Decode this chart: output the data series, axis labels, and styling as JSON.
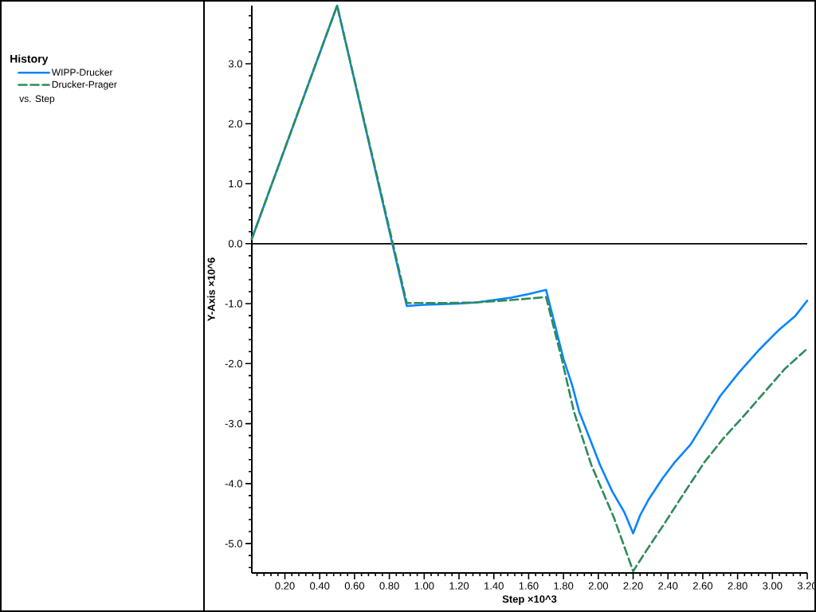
{
  "chart_data": {
    "type": "line",
    "xlabel": "Step ×10^3",
    "ylabel": "Y-Axis ×10^6",
    "legend_title": "History",
    "annotations": [
      "vs. Step"
    ],
    "legend": "left",
    "xlim": [
      0.01,
      3.2
    ],
    "ylim": [
      -5.49,
      3.97
    ],
    "xticks": [
      {
        "value": 0.04,
        "label": null
      },
      {
        "value": 0.08,
        "label": null
      },
      {
        "value": 0.12,
        "label": null
      },
      {
        "value": 0.16,
        "label": null
      },
      {
        "value": 0.2,
        "label": "0.20"
      },
      {
        "value": 0.24,
        "label": null
      },
      {
        "value": 0.28,
        "label": null
      },
      {
        "value": 0.32,
        "label": null
      },
      {
        "value": 0.36,
        "label": null
      },
      {
        "value": 0.4,
        "label": "0.40"
      },
      {
        "value": 0.44,
        "label": null
      },
      {
        "value": 0.48,
        "label": null
      },
      {
        "value": 0.52,
        "label": null
      },
      {
        "value": 0.56,
        "label": null
      },
      {
        "value": 0.6,
        "label": "0.60"
      },
      {
        "value": 0.64,
        "label": null
      },
      {
        "value": 0.68,
        "label": null
      },
      {
        "value": 0.72,
        "label": null
      },
      {
        "value": 0.76,
        "label": null
      },
      {
        "value": 0.8,
        "label": "0.80"
      },
      {
        "value": 0.84,
        "label": null
      },
      {
        "value": 0.88,
        "label": null
      },
      {
        "value": 0.92,
        "label": null
      },
      {
        "value": 0.96,
        "label": null
      },
      {
        "value": 1.0,
        "label": "1.00"
      },
      {
        "value": 1.04,
        "label": null
      },
      {
        "value": 1.08,
        "label": null
      },
      {
        "value": 1.12,
        "label": null
      },
      {
        "value": 1.16,
        "label": null
      },
      {
        "value": 1.2,
        "label": "1.20"
      },
      {
        "value": 1.24,
        "label": null
      },
      {
        "value": 1.28,
        "label": null
      },
      {
        "value": 1.32,
        "label": null
      },
      {
        "value": 1.36,
        "label": null
      },
      {
        "value": 1.4,
        "label": "1.40"
      },
      {
        "value": 1.44,
        "label": null
      },
      {
        "value": 1.48,
        "label": null
      },
      {
        "value": 1.52,
        "label": null
      },
      {
        "value": 1.56,
        "label": null
      },
      {
        "value": 1.6,
        "label": "1.60"
      },
      {
        "value": 1.64,
        "label": null
      },
      {
        "value": 1.68,
        "label": null
      },
      {
        "value": 1.72,
        "label": null
      },
      {
        "value": 1.76,
        "label": null
      },
      {
        "value": 1.8,
        "label": "1.80"
      },
      {
        "value": 1.84,
        "label": null
      },
      {
        "value": 1.88,
        "label": null
      },
      {
        "value": 1.92,
        "label": null
      },
      {
        "value": 1.96,
        "label": null
      },
      {
        "value": 2.0,
        "label": "2.00"
      },
      {
        "value": 2.04,
        "label": null
      },
      {
        "value": 2.08,
        "label": null
      },
      {
        "value": 2.12,
        "label": null
      },
      {
        "value": 2.16,
        "label": null
      },
      {
        "value": 2.2,
        "label": "2.20"
      },
      {
        "value": 2.24,
        "label": null
      },
      {
        "value": 2.28,
        "label": null
      },
      {
        "value": 2.32,
        "label": null
      },
      {
        "value": 2.36,
        "label": null
      },
      {
        "value": 2.4,
        "label": "2.40"
      },
      {
        "value": 2.44,
        "label": null
      },
      {
        "value": 2.48,
        "label": null
      },
      {
        "value": 2.52,
        "label": null
      },
      {
        "value": 2.56,
        "label": null
      },
      {
        "value": 2.6,
        "label": "2.60"
      },
      {
        "value": 2.64,
        "label": null
      },
      {
        "value": 2.68,
        "label": null
      },
      {
        "value": 2.72,
        "label": null
      },
      {
        "value": 2.76,
        "label": null
      },
      {
        "value": 2.8,
        "label": "2.80"
      },
      {
        "value": 2.84,
        "label": null
      },
      {
        "value": 2.88,
        "label": null
      },
      {
        "value": 2.92,
        "label": null
      },
      {
        "value": 2.96,
        "label": null
      },
      {
        "value": 3.0,
        "label": "3.00"
      },
      {
        "value": 3.04,
        "label": null
      },
      {
        "value": 3.08,
        "label": null
      },
      {
        "value": 3.12,
        "label": null
      },
      {
        "value": 3.16,
        "label": null
      },
      {
        "value": 3.2,
        "label": "3.20"
      }
    ],
    "yticks": [
      {
        "value": -5.4,
        "label": null
      },
      {
        "value": -5.2,
        "label": null
      },
      {
        "value": -5.0,
        "label": "-5.0"
      },
      {
        "value": -4.8,
        "label": null
      },
      {
        "value": -4.6,
        "label": null
      },
      {
        "value": -4.4,
        "label": null
      },
      {
        "value": -4.2,
        "label": null
      },
      {
        "value": -4.0,
        "label": "-4.0"
      },
      {
        "value": -3.8,
        "label": null
      },
      {
        "value": -3.6,
        "label": null
      },
      {
        "value": -3.4,
        "label": null
      },
      {
        "value": -3.2,
        "label": null
      },
      {
        "value": -3.0,
        "label": "-3.0"
      },
      {
        "value": -2.8,
        "label": null
      },
      {
        "value": -2.6,
        "label": null
      },
      {
        "value": -2.4,
        "label": null
      },
      {
        "value": -2.2,
        "label": null
      },
      {
        "value": -2.0,
        "label": "-2.0"
      },
      {
        "value": -1.8,
        "label": null
      },
      {
        "value": -1.6,
        "label": null
      },
      {
        "value": -1.4,
        "label": null
      },
      {
        "value": -1.2,
        "label": null
      },
      {
        "value": -1.0,
        "label": "-1.0"
      },
      {
        "value": -0.8,
        "label": null
      },
      {
        "value": -0.6,
        "label": null
      },
      {
        "value": -0.4,
        "label": null
      },
      {
        "value": -0.2,
        "label": null
      },
      {
        "value": 0.0,
        "label": "0.0"
      },
      {
        "value": 0.2,
        "label": null
      },
      {
        "value": 0.4,
        "label": null
      },
      {
        "value": 0.6,
        "label": null
      },
      {
        "value": 0.8,
        "label": null
      },
      {
        "value": 1.0,
        "label": "1.0"
      },
      {
        "value": 1.2,
        "label": null
      },
      {
        "value": 1.4,
        "label": null
      },
      {
        "value": 1.6,
        "label": null
      },
      {
        "value": 1.8,
        "label": null
      },
      {
        "value": 2.0,
        "label": "2.0"
      },
      {
        "value": 2.2,
        "label": null
      },
      {
        "value": 2.4,
        "label": null
      },
      {
        "value": 2.6,
        "label": null
      },
      {
        "value": 2.8,
        "label": null
      },
      {
        "value": 3.0,
        "label": "3.0"
      },
      {
        "value": 3.2,
        "label": null
      },
      {
        "value": 3.4,
        "label": null
      },
      {
        "value": 3.6,
        "label": null
      },
      {
        "value": 3.8,
        "label": null
      }
    ],
    "ref_lines": [
      {
        "axis": "y",
        "value": 0,
        "color": "#000000"
      }
    ],
    "series": [
      {
        "name": "WIPP-Drucker",
        "color": "#0a84ff",
        "line_style": "solid",
        "x": [
          0.01,
          0.5,
          0.9,
          1.0,
          1.2,
          1.3,
          1.4,
          1.5,
          1.6,
          1.7,
          1.8,
          1.85,
          1.89,
          1.95,
          2.01,
          2.08,
          2.15,
          2.2,
          2.24,
          2.29,
          2.37,
          2.44,
          2.53,
          2.6,
          2.7,
          2.81,
          2.92,
          3.04,
          3.13,
          3.2
        ],
        "values": [
          0.08,
          3.97,
          -1.04,
          -1.02,
          -1.0,
          -0.98,
          -0.94,
          -0.9,
          -0.84,
          -0.77,
          -1.92,
          -2.36,
          -2.8,
          -3.24,
          -3.69,
          -4.13,
          -4.48,
          -4.83,
          -4.53,
          -4.26,
          -3.91,
          -3.64,
          -3.35,
          -3.02,
          -2.54,
          -2.14,
          -1.78,
          -1.43,
          -1.21,
          -0.95
        ]
      },
      {
        "name": "Drucker-Prager",
        "color": "#2e8b57",
        "line_style": "dashed",
        "x": [
          0.01,
          0.5,
          0.9,
          1.1,
          1.3,
          1.5,
          1.7,
          1.79,
          1.86,
          1.96,
          2.09,
          2.2,
          2.28,
          2.37,
          2.49,
          2.61,
          2.72,
          2.83,
          2.95,
          3.07,
          3.2
        ],
        "values": [
          0.08,
          3.97,
          -0.99,
          -0.99,
          -0.98,
          -0.94,
          -0.89,
          -1.92,
          -2.8,
          -3.69,
          -4.57,
          -5.46,
          -5.1,
          -4.71,
          -4.17,
          -3.64,
          -3.24,
          -2.89,
          -2.49,
          -2.09,
          -1.75
        ]
      }
    ]
  }
}
